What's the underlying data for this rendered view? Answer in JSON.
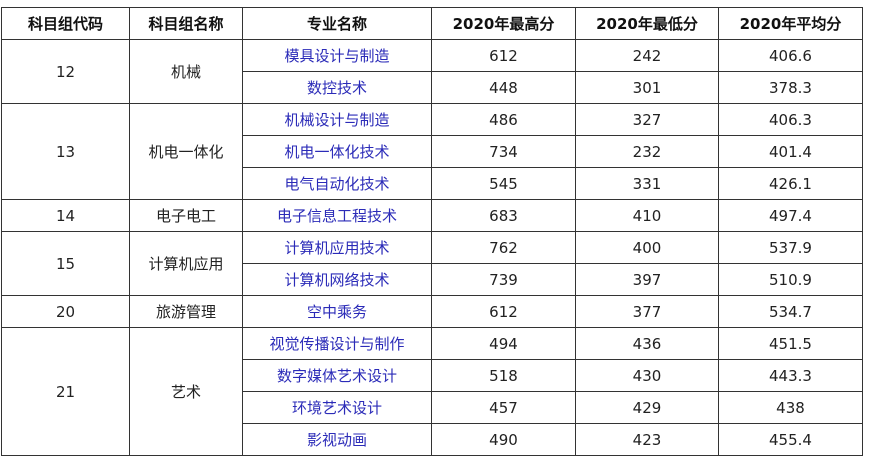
{
  "headers": [
    "科目组代码",
    "科目组名称",
    "专业名称",
    "2020年最高分",
    "2020年最低分",
    "2020年平均分"
  ],
  "groups": [
    {
      "code": "12",
      "name": "机械",
      "rows": [
        {
          "major": "模具设计与制造",
          "max": "612",
          "min": "242",
          "avg": "406.6"
        },
        {
          "major": "数控技术",
          "max": "448",
          "min": "301",
          "avg": "378.3"
        }
      ]
    },
    {
      "code": "13",
      "name": "机电一体化",
      "rows": [
        {
          "major": "机械设计与制造",
          "max": "486",
          "min": "327",
          "avg": "406.3"
        },
        {
          "major": "机电一体化技术",
          "max": "734",
          "min": "232",
          "avg": "401.4"
        },
        {
          "major": "电气自动化技术",
          "max": "545",
          "min": "331",
          "avg": "426.1"
        }
      ]
    },
    {
      "code": "14",
      "name": "电子电工",
      "rows": [
        {
          "major": "电子信息工程技术",
          "max": "683",
          "min": "410",
          "avg": "497.4"
        }
      ]
    },
    {
      "code": "15",
      "name": "计算机应用",
      "rows": [
        {
          "major": "计算机应用技术",
          "max": "762",
          "min": "400",
          "avg": "537.9"
        },
        {
          "major": "计算机网络技术",
          "max": "739",
          "min": "397",
          "avg": "510.9"
        }
      ]
    },
    {
      "code": "20",
      "name": "旅游管理",
      "rows": [
        {
          "major": "空中乘务",
          "max": "612",
          "min": "377",
          "avg": "534.7"
        }
      ]
    },
    {
      "code": "21",
      "name": "艺术",
      "rows": [
        {
          "major": "视觉传播设计与制作",
          "max": "494",
          "min": "436",
          "avg": "451.5"
        },
        {
          "major": "数字媒体艺术设计",
          "max": "518",
          "min": "430",
          "avg": "443.3"
        },
        {
          "major": "环境艺术设计",
          "max": "457",
          "min": "429",
          "avg": "438"
        },
        {
          "major": "影视动画",
          "max": "490",
          "min": "423",
          "avg": "455.4"
        }
      ]
    }
  ]
}
